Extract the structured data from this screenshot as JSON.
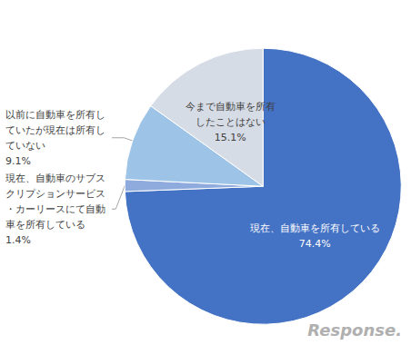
{
  "chart_data": {
    "type": "pie",
    "categories": [
      "現在、自動車を所有している",
      "現在、自動車のサブスクリプションサービス・カーリースにて自動車を所有している",
      "以前に自動車を所有していたが現在は所有していない",
      "今まで自動車を所有したことはない"
    ],
    "values": [
      74.4,
      1.4,
      9.1,
      15.1
    ],
    "value_labels": [
      "74.4%",
      "1.4%",
      "9.1%",
      "15.1%"
    ],
    "colors": [
      "#4472c4",
      "#8faadc",
      "#9dc3e6",
      "#d6dce5"
    ],
    "data_labels": true,
    "annotations": [
      "Response."
    ]
  }
}
